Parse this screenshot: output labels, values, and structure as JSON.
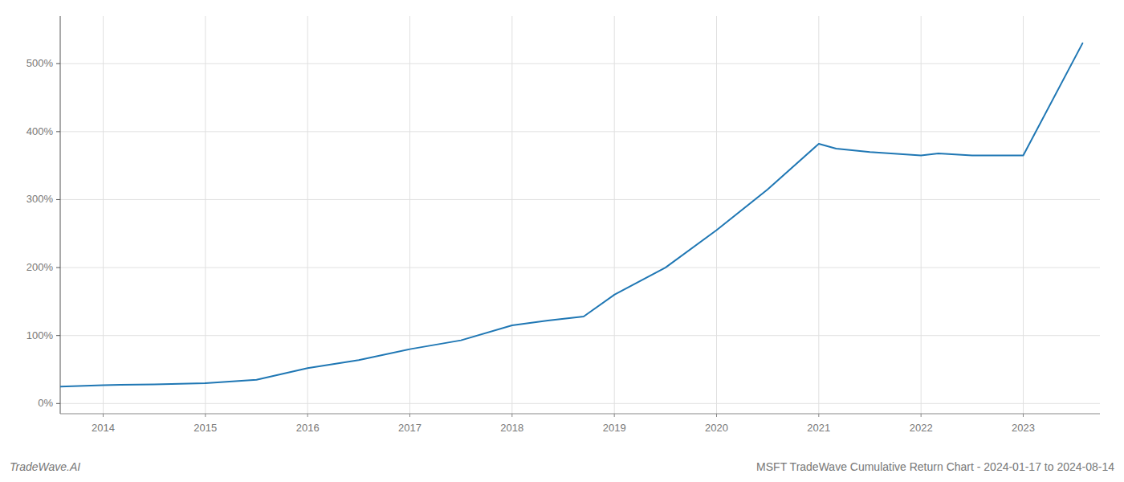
{
  "chart_data": {
    "type": "line",
    "title": "MSFT TradeWave Cumulative Return Chart - 2024-01-17 to 2024-08-14",
    "annotations": [
      "TradeWave.AI"
    ],
    "x": [
      2013.58,
      2014.0,
      2014.17,
      2014.5,
      2014.75,
      2015.0,
      2015.5,
      2016.0,
      2016.5,
      2017.0,
      2017.5,
      2018.0,
      2018.35,
      2018.7,
      2019.0,
      2019.5,
      2020.0,
      2020.5,
      2021.0,
      2021.17,
      2021.5,
      2022.0,
      2022.17,
      2022.5,
      2022.9,
      2023.0,
      2023.58
    ],
    "values": [
      25,
      27,
      27.5,
      28,
      29,
      30,
      35,
      52,
      64,
      80,
      93,
      115,
      122,
      128,
      160,
      200,
      255,
      315,
      382,
      375,
      370,
      365,
      368,
      365,
      365,
      365,
      530
    ],
    "color": "#1f77b4",
    "xlim": [
      2013.58,
      2023.75
    ],
    "xticks": [
      2014,
      2015,
      2016,
      2017,
      2018,
      2019,
      2020,
      2021,
      2022,
      2023
    ],
    "ylim": [
      -15,
      570
    ],
    "yticks": [
      {
        "value": 0,
        "label": "0%"
      },
      {
        "value": 100,
        "label": "100%"
      },
      {
        "value": 200,
        "label": "200%"
      },
      {
        "value": 300,
        "label": "300%"
      },
      {
        "value": 400,
        "label": "400%"
      },
      {
        "value": 500,
        "label": "500%"
      }
    ],
    "grid": true
  }
}
